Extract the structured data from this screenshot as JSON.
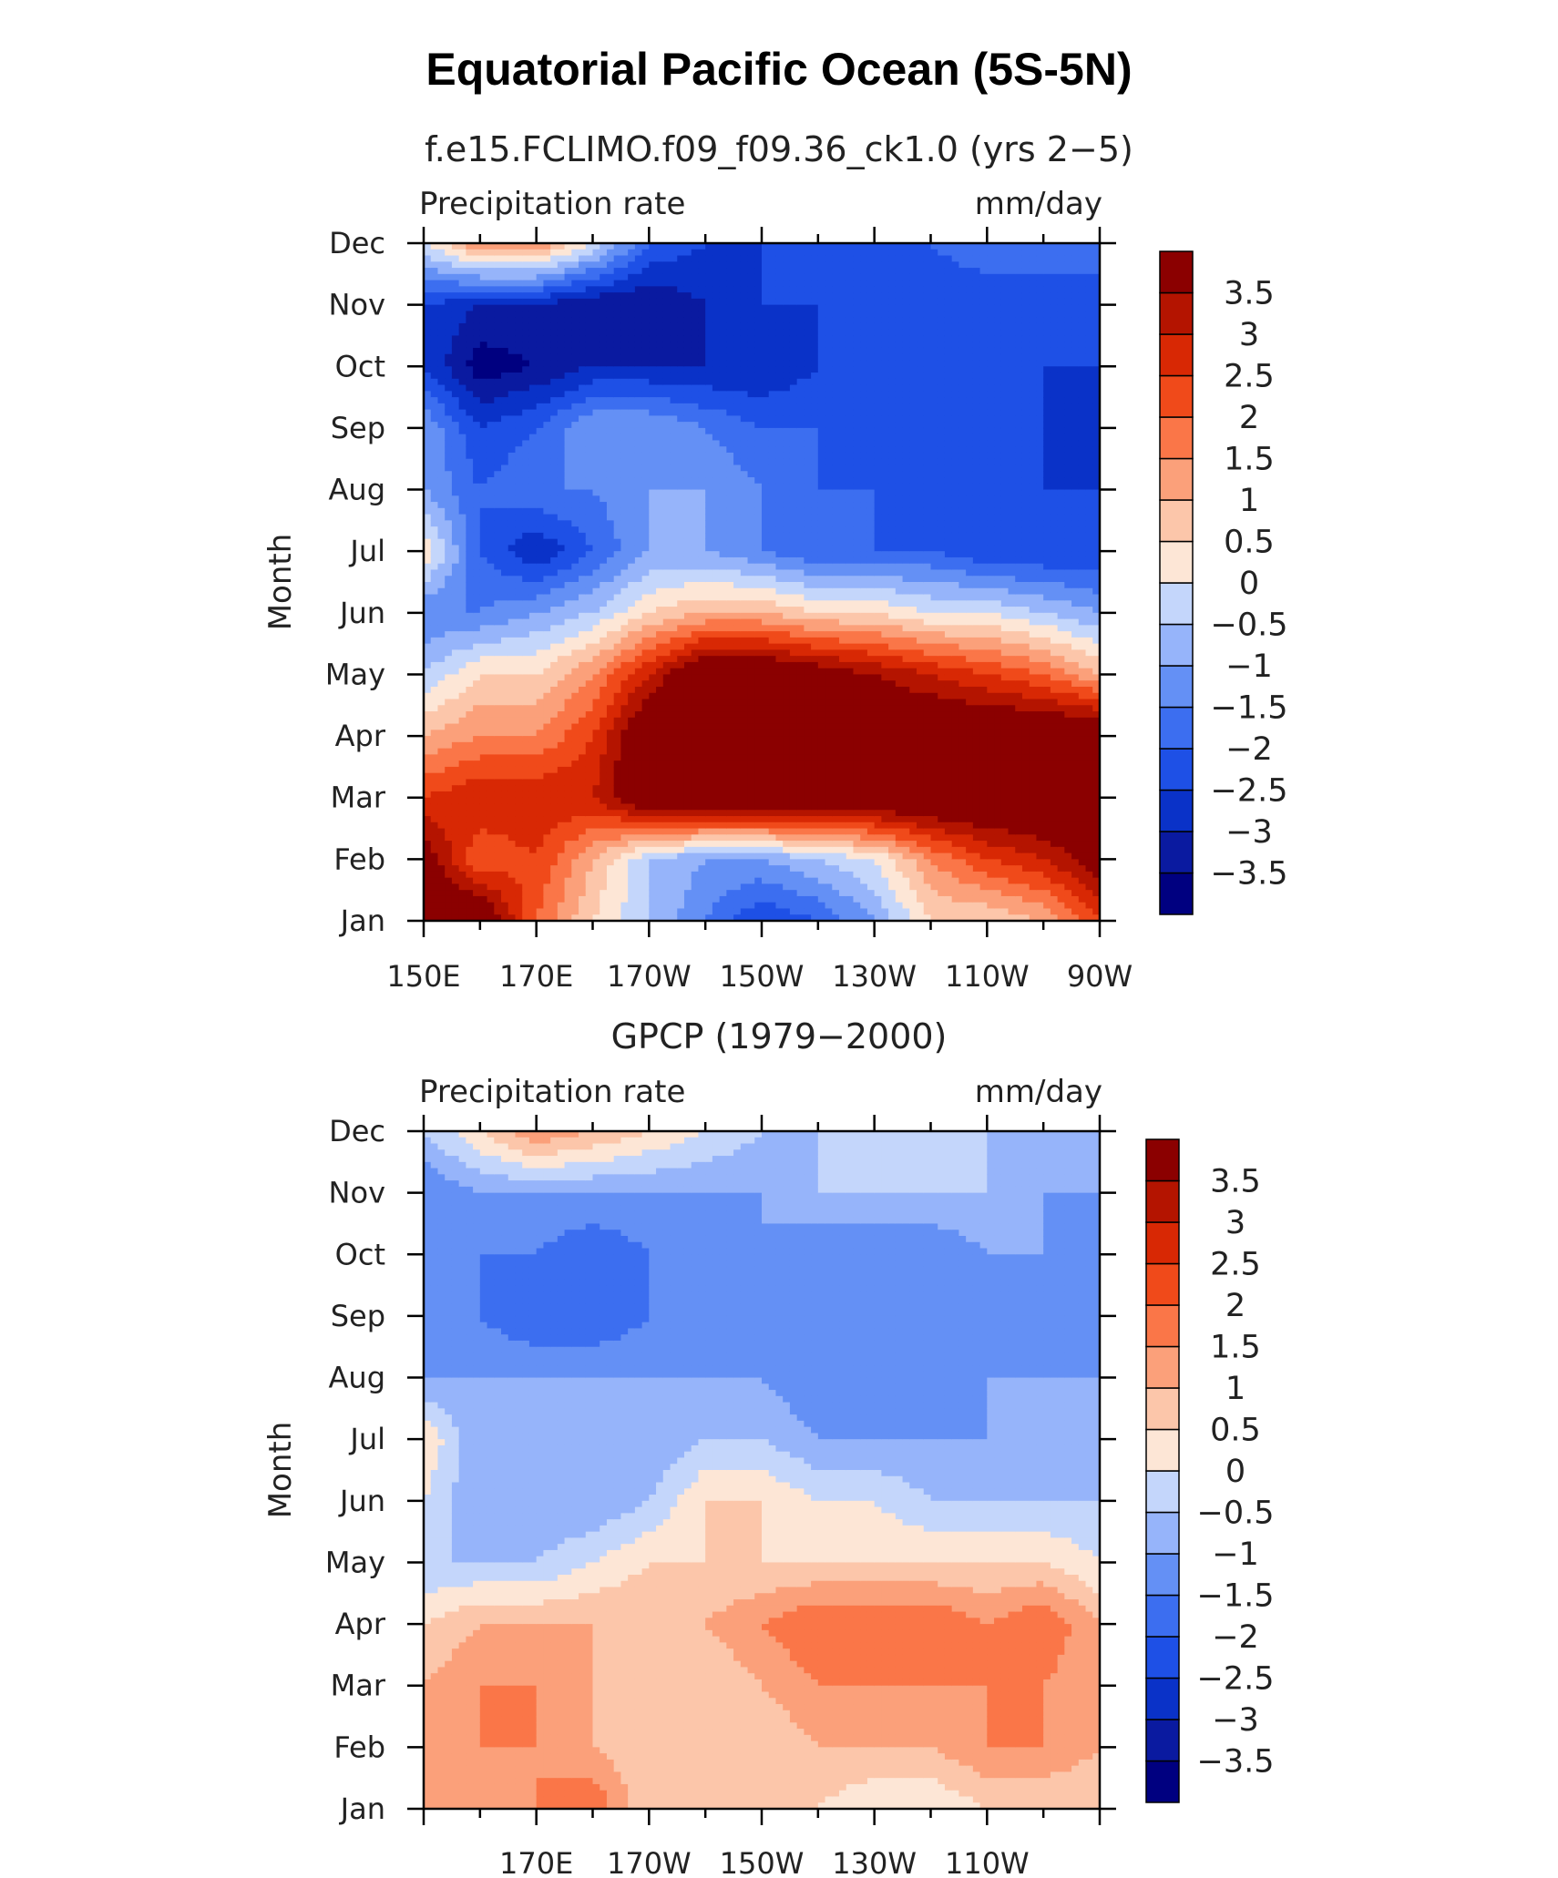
{
  "figure_title": "Equatorial Pacific Ocean (5S-5N)",
  "chart_data": [
    {
      "type": "heatmap",
      "title": "f.e15.FCLIMO.f09_f09.36_ck1.0 (yrs 2−5)",
      "variable_label": "Precipitation rate",
      "units_label": "mm/day",
      "ylabel": "Month",
      "x_ticks": [
        "150E",
        "170E",
        "170W",
        "150W",
        "130W",
        "110W",
        "90W"
      ],
      "y_ticks": [
        "Jan",
        "Feb",
        "Mar",
        "Apr",
        "May",
        "Jun",
        "Jul",
        "Aug",
        "Sep",
        "Oct",
        "Nov",
        "Dec"
      ],
      "longitudes": [
        150,
        160,
        170,
        180,
        190,
        200,
        210,
        220,
        230,
        240,
        250,
        260,
        270
      ],
      "months": [
        "Jan",
        "Feb",
        "Mar",
        "Apr",
        "May",
        "Jun",
        "Jul",
        "Aug",
        "Sep",
        "Oct",
        "Nov",
        "Dec"
      ],
      "values": [
        [
          4.5,
          4.5,
          2.0,
          0.5,
          -0.5,
          -1.5,
          -2.5,
          -2.0,
          -1.0,
          0.5,
          0.5,
          1.0,
          2.5
        ],
        [
          4.0,
          2.0,
          2.5,
          1.0,
          -0.5,
          -1.0,
          -1.0,
          -0.5,
          0.0,
          1.5,
          2.5,
          3.0,
          4.0
        ],
        [
          2.5,
          3.0,
          3.0,
          3.0,
          4.5,
          4.5,
          4.5,
          4.5,
          4.5,
          4.5,
          4.5,
          4.5,
          4.5
        ],
        [
          1.0,
          1.5,
          1.5,
          2.5,
          4.5,
          4.5,
          4.5,
          4.5,
          4.5,
          4.5,
          4.5,
          4.5,
          4.5
        ],
        [
          -0.5,
          0.5,
          0.5,
          1.5,
          3.0,
          4.5,
          4.5,
          4.0,
          3.5,
          3.0,
          2.5,
          2.0,
          1.0
        ],
        [
          -1.5,
          -1.5,
          -1.0,
          -0.5,
          0.5,
          1.0,
          1.0,
          0.5,
          0.5,
          0.0,
          0.0,
          -0.5,
          -1.0
        ],
        [
          0.5,
          -2.0,
          -3.0,
          -2.0,
          -1.0,
          -1.0,
          -1.5,
          -2.0,
          -2.0,
          -2.0,
          -2.5,
          -2.5,
          -2.5
        ],
        [
          -1.0,
          -2.0,
          -1.5,
          -1.5,
          -1.0,
          -1.0,
          -1.5,
          -2.0,
          -2.0,
          -2.5,
          -2.5,
          -2.5,
          -2.5
        ],
        [
          -1.0,
          -2.5,
          -2.0,
          -1.0,
          -1.0,
          -1.5,
          -2.0,
          -2.0,
          -2.5,
          -2.5,
          -2.5,
          -2.5,
          -3.0
        ],
        [
          -2.5,
          -3.8,
          -3.5,
          -3.0,
          -3.0,
          -3.0,
          -3.0,
          -2.5,
          -2.5,
          -2.5,
          -2.5,
          -2.5,
          -2.5
        ],
        [
          -2.5,
          -3.0,
          -3.0,
          -3.5,
          -3.5,
          -3.0,
          -2.5,
          -2.5,
          -2.5,
          -2.5,
          -2.5,
          -2.5,
          -2.5
        ],
        [
          0.0,
          1.5,
          1.5,
          0.0,
          -2.0,
          -2.5,
          -2.5,
          -2.5,
          -2.0,
          -2.0,
          -1.5,
          -1.5,
          -1.5
        ]
      ],
      "color_levels": [
        "-3.5",
        "-3",
        "-2.5",
        "-2",
        "-1.5",
        "-1",
        "-0.5",
        "0",
        "0.5",
        "1",
        "1.5",
        "2",
        "2.5",
        "3",
        "3.5"
      ]
    },
    {
      "type": "heatmap",
      "title": "GPCP (1979−2000)",
      "variable_label": "Precipitation rate",
      "units_label": "mm/day",
      "ylabel": "Month",
      "x_ticks": [
        "170E",
        "170W",
        "150W",
        "130W",
        "110W"
      ],
      "y_ticks": [
        "Jan",
        "Feb",
        "Mar",
        "Apr",
        "May",
        "Jun",
        "Jul",
        "Aug",
        "Sep",
        "Oct",
        "Nov",
        "Dec"
      ],
      "longitudes": [
        150,
        160,
        170,
        180,
        190,
        200,
        210,
        220,
        230,
        240,
        250,
        260,
        270
      ],
      "months": [
        "Jan",
        "Feb",
        "Mar",
        "Apr",
        "May",
        "Jun",
        "Jul",
        "Aug",
        "Sep",
        "Oct",
        "Nov",
        "Dec"
      ],
      "values": [
        [
          1.0,
          1.0,
          1.5,
          2.0,
          0.5,
          0.5,
          0.5,
          0.5,
          0.0,
          0.0,
          0.5,
          0.5,
          0.5
        ],
        [
          1.0,
          1.5,
          1.5,
          1.0,
          0.5,
          0.5,
          0.5,
          1.0,
          1.0,
          1.0,
          1.5,
          1.5,
          1.0
        ],
        [
          1.0,
          1.5,
          1.5,
          1.0,
          0.5,
          0.5,
          1.0,
          1.5,
          1.5,
          1.5,
          1.5,
          1.5,
          1.0
        ],
        [
          0.5,
          1.0,
          1.0,
          1.0,
          1.0,
          1.0,
          1.5,
          2.0,
          2.0,
          2.0,
          1.5,
          2.0,
          1.0
        ],
        [
          -0.5,
          -0.5,
          -0.5,
          0.0,
          0.5,
          0.5,
          0.5,
          0.5,
          0.5,
          0.5,
          0.5,
          0.5,
          0.0
        ],
        [
          0.0,
          -1.0,
          -1.0,
          -1.0,
          -0.5,
          0.5,
          0.5,
          0.0,
          0.0,
          -0.5,
          -0.5,
          -0.5,
          -0.5
        ],
        [
          0.5,
          -1.0,
          -1.0,
          -1.0,
          -1.0,
          -0.5,
          -0.5,
          -1.0,
          -1.0,
          -1.0,
          -1.0,
          -1.0,
          -1.0
        ],
        [
          -1.0,
          -1.0,
          -1.0,
          -1.0,
          -1.0,
          -1.0,
          -1.0,
          -1.5,
          -1.5,
          -1.5,
          -1.0,
          -1.0,
          -1.0
        ],
        [
          -1.5,
          -1.5,
          -2.0,
          -2.0,
          -1.5,
          -1.5,
          -1.5,
          -1.5,
          -1.5,
          -1.5,
          -1.0,
          -1.5,
          -1.5
        ],
        [
          -1.5,
          -1.5,
          -1.5,
          -2.0,
          -1.5,
          -1.5,
          -1.0,
          -1.5,
          -1.5,
          -1.5,
          -1.0,
          -1.0,
          -1.5
        ],
        [
          -1.5,
          -1.0,
          -1.0,
          -1.0,
          -1.0,
          -1.0,
          -1.0,
          -0.5,
          -0.5,
          -0.5,
          -0.5,
          -1.0,
          -1.0
        ],
        [
          -0.5,
          0.5,
          1.5,
          1.0,
          0.5,
          0.0,
          -0.5,
          -0.5,
          -0.5,
          -0.5,
          -0.5,
          -0.5,
          -0.5
        ]
      ],
      "color_levels": [
        "-3.5",
        "-3",
        "-2.5",
        "-2",
        "-1.5",
        "-1",
        "-0.5",
        "0",
        "0.5",
        "1",
        "1.5",
        "2",
        "2.5",
        "3",
        "3.5"
      ]
    }
  ],
  "colors": [
    "#000080",
    "#0a1aa0",
    "#0a32c8",
    "#1e50e6",
    "#3c6ef0",
    "#6490f5",
    "#96b4fa",
    "#c4d6fb",
    "#fde6d6",
    "#fcc6aa",
    "#fba07a",
    "#fa7648",
    "#f04a1a",
    "#d82804",
    "#b41400",
    "#8b0000"
  ]
}
